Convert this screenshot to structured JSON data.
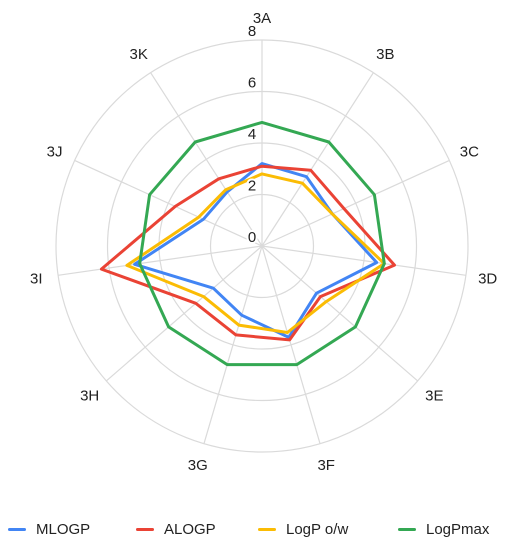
{
  "chart_data": {
    "type": "radar",
    "title": "",
    "categories": [
      "3A",
      "3B",
      "3C",
      "3D",
      "3E",
      "3F",
      "3G",
      "3H",
      "3I",
      "3J",
      "3K"
    ],
    "radial_axis": {
      "min": 0,
      "max": 8,
      "ticks": [
        0,
        2,
        4,
        6,
        8
      ]
    },
    "grid": true,
    "legend_position": "bottom",
    "series": [
      {
        "name": "MLOGP",
        "color": "#4285F4",
        "values": [
          3.2,
          3.2,
          3.0,
          4.5,
          2.8,
          3.7,
          2.8,
          2.5,
          5.0,
          2.5,
          2.5
        ]
      },
      {
        "name": "ALOGP",
        "color": "#EA4335",
        "values": [
          3.1,
          3.5,
          3.5,
          5.2,
          3.0,
          3.8,
          3.6,
          3.4,
          6.3,
          3.7,
          3.1
        ]
      },
      {
        "name": "LogP o/w",
        "color": "#FBBC04",
        "values": [
          2.8,
          2.9,
          3.0,
          4.8,
          3.3,
          3.5,
          3.2,
          3.0,
          5.3,
          2.7,
          2.6
        ]
      },
      {
        "name": "LogPmax",
        "color": "#34A853",
        "values": [
          4.8,
          4.8,
          4.8,
          4.8,
          4.8,
          4.8,
          4.8,
          4.8,
          4.8,
          4.8,
          4.8
        ]
      }
    ]
  }
}
